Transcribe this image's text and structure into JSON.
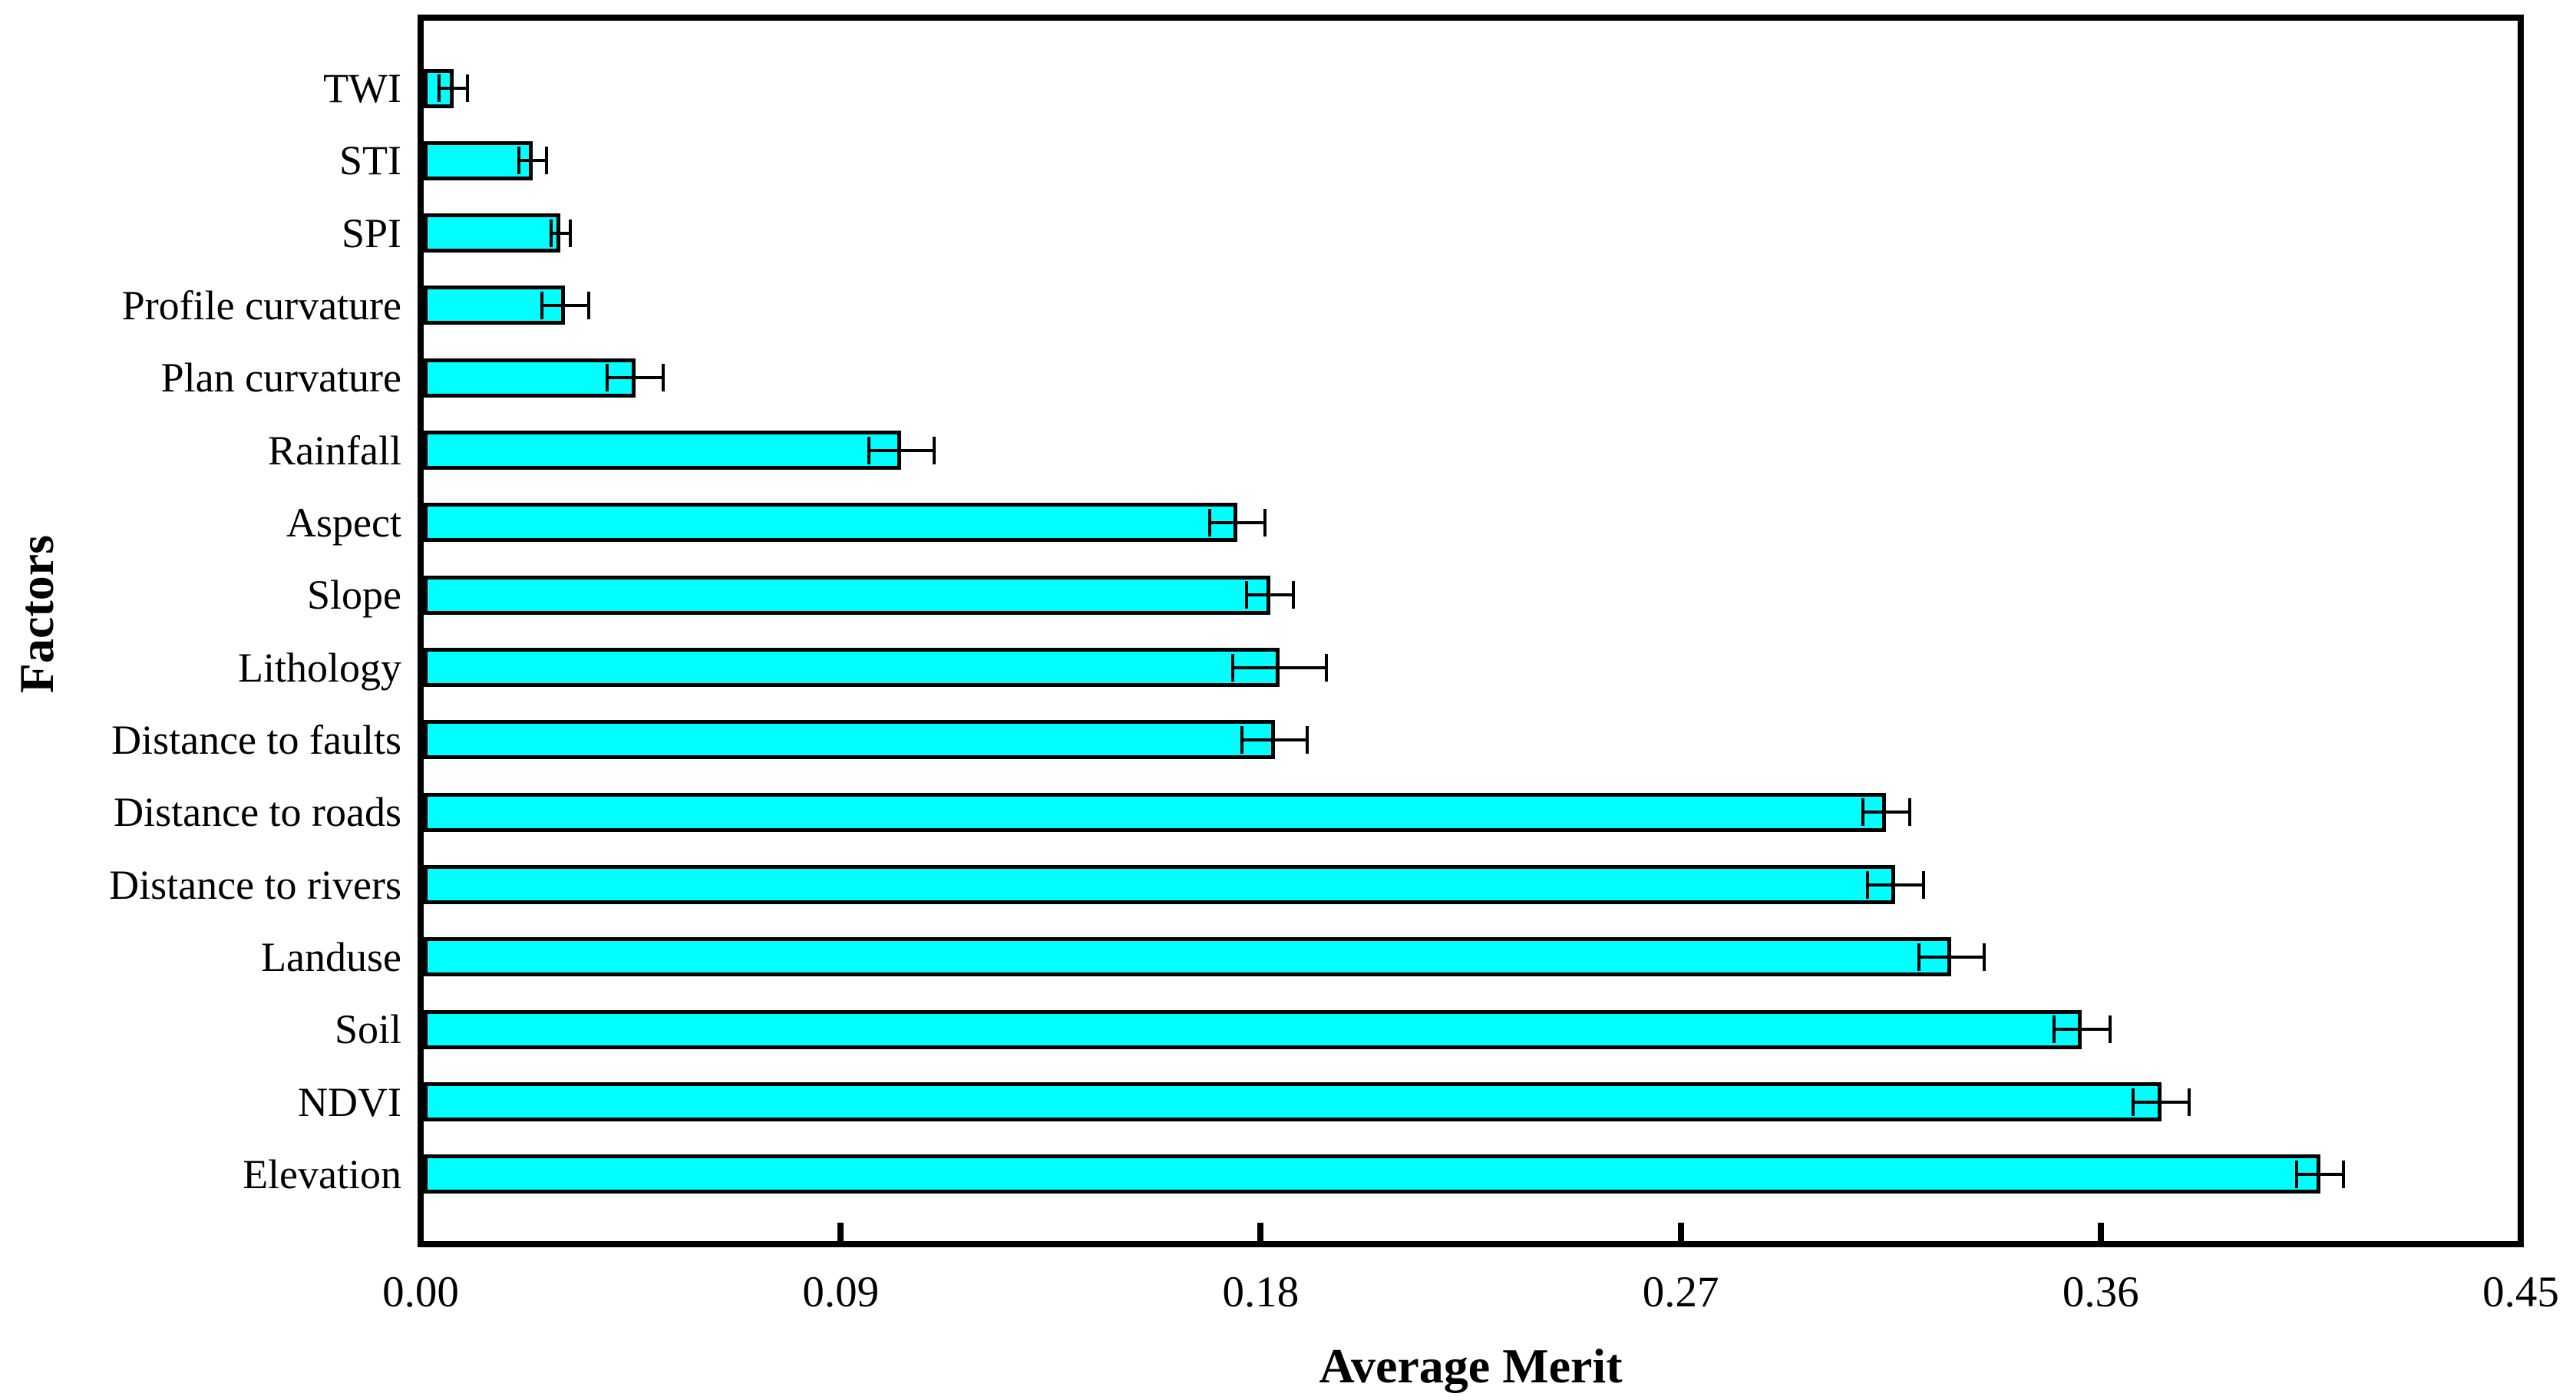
{
  "figure": {
    "background_color": "#ffffff",
    "axis_color": "#000000"
  },
  "chart_data": {
    "type": "bar",
    "orientation": "horizontal",
    "title": "",
    "xlabel": "Average Merit",
    "ylabel": "Factors",
    "xlim": [
      0,
      0.45
    ],
    "xticks": [
      0.0,
      0.09,
      0.18,
      0.27,
      0.36,
      0.45
    ],
    "xtick_labels": [
      "0.00",
      "0.09",
      "0.18",
      "0.27",
      "0.36",
      "0.45"
    ],
    "grid": false,
    "legend_position": "none",
    "bar_color": "#00FFFF",
    "bar_edge_color": "#000000",
    "error_bar_color": "#000000",
    "categories_top_to_bottom": [
      "TWI",
      "STI",
      "SPI",
      "Profile curvature",
      "Plan curvature",
      "Rainfall",
      "Aspect",
      "Slope",
      "Lithology",
      "Distance to faults",
      "Distance to roads",
      "Distance to rivers",
      "Landuse",
      "Soil",
      "NDVI",
      "Elevation"
    ],
    "series": [
      {
        "name": "Average Merit",
        "values": [
          0.007,
          0.024,
          0.03,
          0.031,
          0.046,
          0.103,
          0.175,
          0.182,
          0.184,
          0.183,
          0.314,
          0.316,
          0.328,
          0.356,
          0.373,
          0.407
        ],
        "errors": [
          0.003,
          0.003,
          0.002,
          0.005,
          0.006,
          0.007,
          0.006,
          0.005,
          0.01,
          0.007,
          0.005,
          0.006,
          0.007,
          0.006,
          0.006,
          0.005
        ]
      }
    ]
  }
}
